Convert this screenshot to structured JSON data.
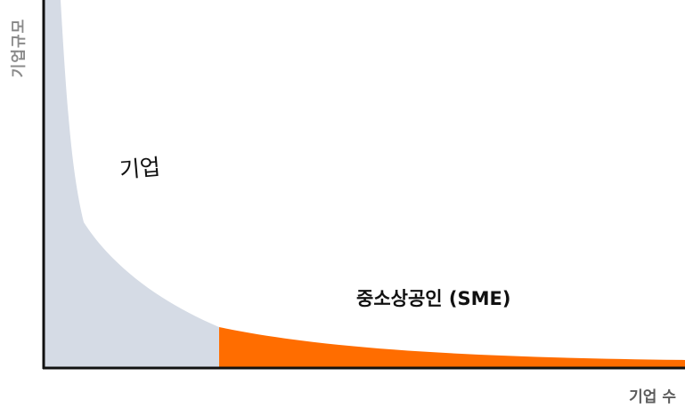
{
  "axes": {
    "y_label": "기업규모",
    "x_label": "기업 수"
  },
  "regions": {
    "large": {
      "label": "기업",
      "color": "#d5dbe5"
    },
    "sme": {
      "label": "중소상공인 (SME)",
      "color": "#ff6d00"
    }
  },
  "axis_color": "#111111"
}
